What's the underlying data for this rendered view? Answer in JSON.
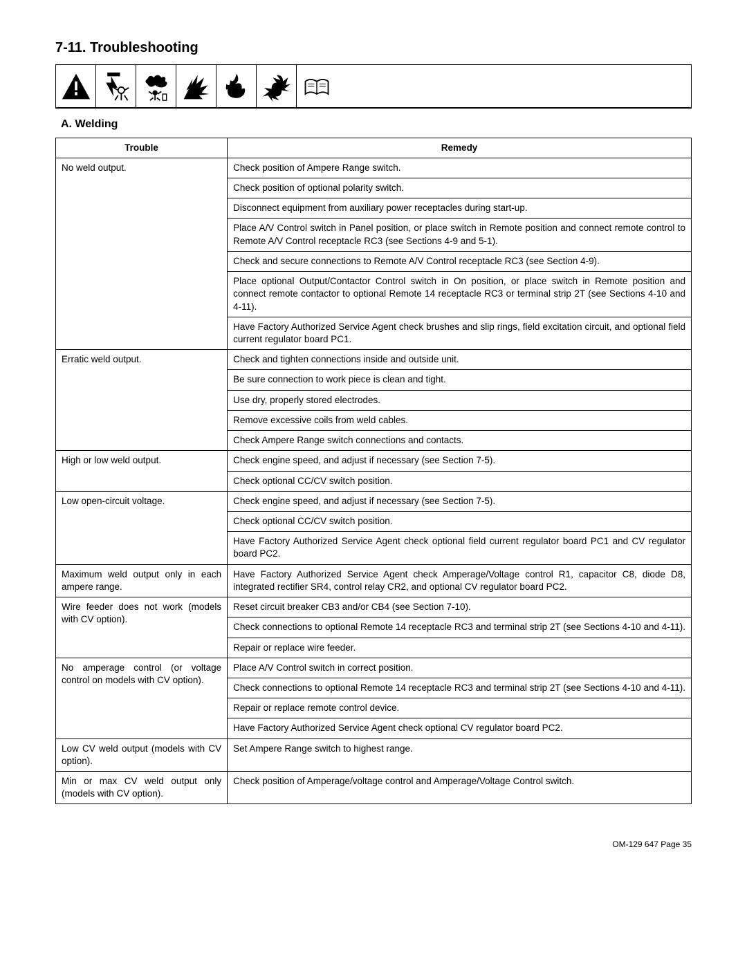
{
  "heading": "7-11. Troubleshooting",
  "subheading": "A.  Welding",
  "icons": [
    "warning-triangle-icon",
    "electric-shock-icon",
    "toxic-fumes-icon",
    "explosion-icon",
    "fire-icon",
    "moving-parts-icon",
    "read-manual-icon"
  ],
  "table": {
    "headers": {
      "trouble": "Trouble",
      "remedy": "Remedy"
    },
    "groups": [
      {
        "trouble": "No weld output.",
        "justify_trouble": false,
        "remedies": [
          {
            "text": "Check position of Ampere Range switch.",
            "justify": false
          },
          {
            "text": "Check position of optional polarity switch.",
            "justify": false
          },
          {
            "text": "Disconnect equipment from auxiliary power receptacles during start-up.",
            "justify": false
          },
          {
            "text": "Place A/V Control switch in Panel position, or place switch in Remote position and connect remote control to Remote A/V Control receptacle RC3 (see Sections 4-9 and 5-1).",
            "justify": true
          },
          {
            "text": "Check and secure connections to Remote A/V Control receptacle RC3 (see Section 4-9).",
            "justify": false
          },
          {
            "text": "Place optional Output/Contactor Control switch in On position, or place switch in Remote position and connect remote contactor to optional Remote 14 receptacle RC3 or terminal strip 2T (see Sections 4-10 and 4-11).",
            "justify": true
          },
          {
            "text": "Have Factory Authorized Service Agent check brushes and slip rings, field excitation circuit, and optional field current regulator board PC1.",
            "justify": true
          }
        ]
      },
      {
        "trouble": "Erratic weld output.",
        "justify_trouble": false,
        "remedies": [
          {
            "text": "Check and tighten connections inside and outside unit.",
            "justify": false
          },
          {
            "text": "Be sure connection to work piece is clean and tight.",
            "justify": false
          },
          {
            "text": "Use dry, properly stored electrodes.",
            "justify": false
          },
          {
            "text": "Remove excessive coils from weld cables.",
            "justify": false
          },
          {
            "text": "Check Ampere Range switch connections and contacts.",
            "justify": false
          }
        ]
      },
      {
        "trouble": "High or low weld output.",
        "justify_trouble": false,
        "remedies": [
          {
            "text": "Check engine speed, and adjust if necessary (see Section 7-5).",
            "justify": false
          },
          {
            "text": "Check optional CC/CV switch position.",
            "justify": false
          }
        ]
      },
      {
        "trouble": "Low open-circuit voltage.",
        "justify_trouble": false,
        "remedies": [
          {
            "text": "Check engine speed, and adjust if necessary (see Section 7-5).",
            "justify": false
          },
          {
            "text": "Check optional CC/CV switch position.",
            "justify": false
          },
          {
            "text": "Have Factory Authorized Service Agent check optional field current regulator board PC1 and CV regulator board PC2.",
            "justify": true
          }
        ]
      },
      {
        "trouble": "Maximum weld output only in each ampere range.",
        "justify_trouble": true,
        "remedies": [
          {
            "text": "Have Factory Authorized Service Agent check Amperage/Voltage control R1, capacitor C8, diode D8, integrated rectifier SR4, control relay CR2, and optional CV regulator board PC2.",
            "justify": true
          }
        ]
      },
      {
        "trouble": "Wire feeder does not work (models with CV option).",
        "justify_trouble": true,
        "remedies": [
          {
            "text": "Reset circuit breaker CB3 and/or CB4 (see Section 7-10).",
            "justify": false
          },
          {
            "text": "Check connections to optional Remote 14 receptacle RC3 and terminal strip 2T (see Sections 4-10 and 4-11).",
            "justify": true
          },
          {
            "text": "Repair or replace wire feeder.",
            "justify": false
          }
        ]
      },
      {
        "trouble": "No amperage control (or voltage control on models with CV option).",
        "justify_trouble": true,
        "remedies": [
          {
            "text": "Place A/V Control switch in correct position.",
            "justify": false
          },
          {
            "text": "Check connections to optional Remote 14 receptacle RC3 and terminal strip 2T (see Sections 4-10 and 4-11).",
            "justify": true
          },
          {
            "text": "Repair or replace remote control device.",
            "justify": false
          },
          {
            "text": "Have Factory Authorized Service Agent check optional CV regulator board PC2.",
            "justify": false
          }
        ]
      },
      {
        "trouble": "Low CV weld output (models with CV option).",
        "justify_trouble": true,
        "remedies": [
          {
            "text": "Set Ampere Range switch to highest range.",
            "justify": false
          }
        ]
      },
      {
        "trouble": "Min or max CV weld output only (models with CV option).",
        "justify_trouble": true,
        "remedies": [
          {
            "text": "Check position of Amperage/voltage control and Amperage/Voltage Control switch.",
            "justify": false
          }
        ]
      }
    ]
  },
  "footer": "OM-129 647 Page 35"
}
